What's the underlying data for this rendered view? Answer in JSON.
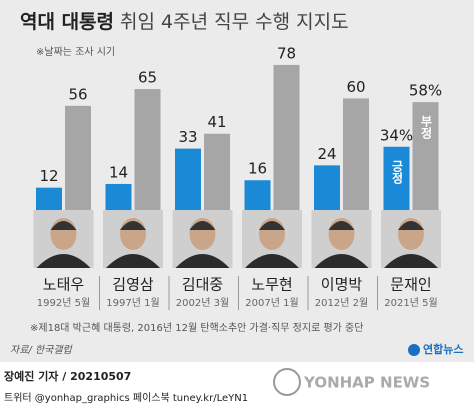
{
  "chart_data": {
    "type": "bar",
    "title_bold": "역대 대통령",
    "title_rest": "취임 4주년 직무 수행 지지도",
    "subtitle": "※날짜는 조사 시기",
    "categories": [
      "노태우",
      "김영삼",
      "김대중",
      "노무현",
      "이명박",
      "문재인"
    ],
    "periods": [
      "1992년 5월",
      "1997년 1월",
      "2002년 3월",
      "2007년 1월",
      "2012년 2월",
      "2021년 5월"
    ],
    "series": [
      {
        "name": "긍정",
        "color": "#1a8ad6",
        "values": [
          12,
          14,
          33,
          16,
          24,
          34
        ],
        "value_labels": [
          "12",
          "14",
          "33",
          "16",
          "24",
          "34%"
        ]
      },
      {
        "name": "부정",
        "color": "#a6a6a6",
        "values": [
          56,
          65,
          41,
          78,
          60,
          58
        ],
        "value_labels": [
          "56",
          "65",
          "41",
          "78",
          "60",
          "58%"
        ]
      }
    ],
    "note": "※제18대 박근혜 대통령, 2016년 12월 탄핵소추안 가결·직무 정지로 평가 중단",
    "source": "자료/ 한국갤럽",
    "logo": "연합뉴스",
    "byline": "장예진 기자 / 20210507",
    "social": "트위터 @yonhap_graphics  페이스북 tuney.kr/LeYN1",
    "watermark": "YONHAP NEWS"
  }
}
